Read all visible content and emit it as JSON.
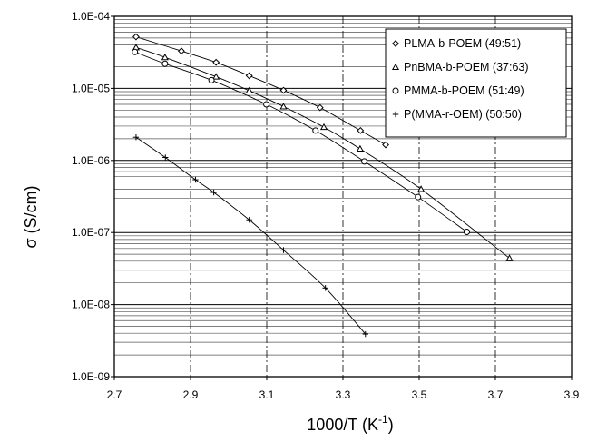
{
  "chart_data": {
    "type": "scatter",
    "xlabel": "1000/T (K",
    "xlabel_sup": "-1",
    "xlabel_close": ")",
    "ylabel": "σ (S/cm)",
    "xlim": [
      2.7,
      3.9
    ],
    "ylim": [
      1e-09,
      0.0001
    ],
    "y_scale": "log",
    "x_ticks": [
      "2.7",
      "2.9",
      "3.1",
      "3.3",
      "3.5",
      "3.7",
      "3.9"
    ],
    "x_tick_values": [
      2.7,
      2.9,
      3.1,
      3.3,
      3.5,
      3.7,
      3.9
    ],
    "y_ticks": [
      "1.0E-09",
      "1.0E-08",
      "1.0E-07",
      "1.0E-06",
      "1.0E-05",
      "1.0E-04"
    ],
    "y_tick_values": [
      1e-09,
      1e-08,
      1e-07,
      1e-06,
      1e-05,
      0.0001
    ],
    "grid": "minor horizontal lines on log decades, dash-dot vertical lines",
    "legend_position": "top-right",
    "series": [
      {
        "name": "PLMA-b-POEM (49:51)",
        "marker": "diamond",
        "x": [
          2.757,
          2.876,
          2.967,
          3.054,
          3.144,
          3.24,
          3.346,
          3.412
        ],
        "y": [
          5.2e-05,
          3.3e-05,
          2.3e-05,
          1.5e-05,
          9.4e-06,
          5.4e-06,
          2.6e-06,
          1.65e-06
        ]
      },
      {
        "name": "PnBMA-b-POEM (37:63)",
        "marker": "triangle",
        "x": [
          2.757,
          2.833,
          2.967,
          3.054,
          3.144,
          3.25,
          3.345,
          3.505,
          3.737
        ],
        "y": [
          3.7e-05,
          2.7e-05,
          1.45e-05,
          9.3e-06,
          5.6e-06,
          2.9e-06,
          1.45e-06,
          4e-07,
          4.4e-08
        ]
      },
      {
        "name": "PMMA-b-POEM (51:49)",
        "marker": "circle",
        "x": [
          2.754,
          2.833,
          2.955,
          3.099,
          3.228,
          3.356,
          3.497,
          3.625
        ],
        "y": [
          3.2e-05,
          2.2e-05,
          1.3e-05,
          6e-06,
          2.6e-06,
          9.7e-07,
          3.1e-07,
          1.02e-07
        ]
      },
      {
        "name": "P(MMA-r-OEM) (50:50)",
        "marker": "plus",
        "x": [
          2.757,
          2.834,
          2.913,
          2.961,
          3.054,
          3.144,
          3.254,
          3.359
        ],
        "y": [
          2.1e-06,
          1.1e-06,
          5.4e-07,
          3.6e-07,
          1.5e-07,
          5.7e-08,
          1.7e-08,
          3.9e-09
        ]
      }
    ]
  }
}
